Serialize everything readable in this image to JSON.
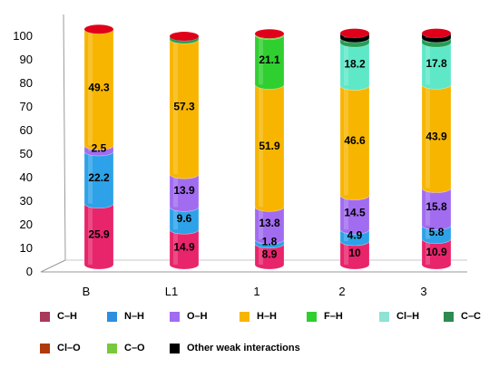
{
  "chart_data": {
    "type": "bar",
    "stacked": true,
    "categories": [
      "B",
      "L1",
      "1",
      "2",
      "3"
    ],
    "ylim": [
      0,
      100
    ],
    "yticks": [
      0,
      10,
      20,
      30,
      40,
      50,
      60,
      70,
      80,
      90,
      100
    ],
    "title": "",
    "xlabel": "",
    "ylabel": "",
    "grid": false,
    "legend_position": "bottom",
    "series": [
      {
        "name": "C–H",
        "color": "#e8246b",
        "legend_color": "#a83a5c",
        "values": [
          25.9,
          14.9,
          8.9,
          10,
          10.9
        ],
        "labels": [
          "25.9",
          "14.9",
          "8.9",
          "10",
          "10.9"
        ]
      },
      {
        "name": "N–H",
        "color": "#2ea2e8",
        "legend_color": "#2e8ee0",
        "values": [
          22.2,
          9.6,
          1.8,
          4.9,
          5.8
        ],
        "labels": [
          "22.2",
          "9.6",
          "1.8",
          "4.9",
          "5.8"
        ]
      },
      {
        "name": "O–H",
        "color": "#a26cf0",
        "legend_color": "#a26cf0",
        "values": [
          2.5,
          13.9,
          13.8,
          14.5,
          15.8
        ],
        "labels": [
          "2.5",
          "13.9",
          "13.8",
          "14.5",
          "15.8"
        ]
      },
      {
        "name": "H–H",
        "color": "#f7b500",
        "legend_color": "#f7b500",
        "values": [
          49.3,
          57.3,
          51.9,
          46.6,
          43.9
        ],
        "labels": [
          "49.3",
          "57.3",
          "51.9",
          "46.6",
          "43.9"
        ]
      },
      {
        "name": "F–H",
        "color": "#2fcf2f",
        "legend_color": "#2fcf2f",
        "values": [
          0,
          0,
          21.1,
          0,
          0
        ],
        "labels": [
          "",
          "",
          "21.1",
          "",
          ""
        ]
      },
      {
        "name": "Cl–H",
        "color": "#5ee8c8",
        "legend_color": "#8fe3d3",
        "values": [
          0,
          0,
          0,
          18.2,
          17.8
        ],
        "labels": [
          "",
          "",
          "",
          "18.2",
          "17.8"
        ]
      },
      {
        "name": "C–C",
        "color": "#22a055",
        "legend_color": "#2d8a50",
        "values": [
          0,
          1.2,
          0,
          2,
          2
        ],
        "labels": [
          "",
          "",
          "",
          "",
          ""
        ]
      },
      {
        "name": "Cl–O",
        "color": "#b03a0a",
        "legend_color": "#b03a0a",
        "values": [
          0,
          0,
          0,
          0,
          0
        ],
        "labels": [
          "",
          "",
          "",
          "",
          ""
        ]
      },
      {
        "name": "C–O",
        "color": "#78c83c",
        "legend_color": "#78c83c",
        "values": [
          0,
          0,
          0.5,
          0,
          0
        ],
        "labels": [
          "",
          "",
          "",
          "",
          ""
        ]
      },
      {
        "name": "Other weak interactions",
        "color": "#000000",
        "legend_color": "#000000",
        "values": [
          0,
          0,
          0,
          2,
          2
        ],
        "labels": [
          "",
          "",
          "",
          "",
          ""
        ]
      }
    ],
    "top_cap_color": "#e0001a"
  }
}
